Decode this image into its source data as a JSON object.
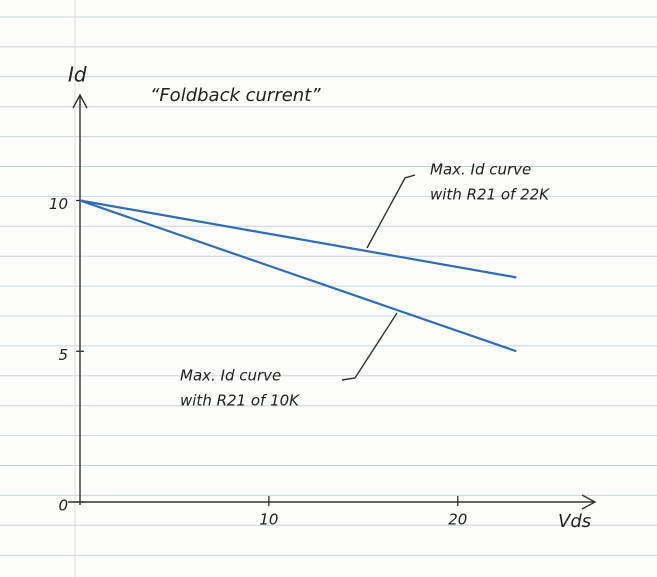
{
  "chart_data": {
    "type": "line",
    "title": "“Foldback current”",
    "x_label": "Vds",
    "y_label": "Id",
    "xlim": [
      0,
      27
    ],
    "ylim": [
      0,
      13.5
    ],
    "xticks": [
      10,
      20
    ],
    "yticks": [
      0,
      5,
      10
    ],
    "series": [
      {
        "label_lines": [
          "Max. Id curve",
          "with R21 of 22K"
        ],
        "color": "#2f6db5",
        "x": [
          0,
          23.1
        ],
        "values": [
          10,
          7.45
        ]
      },
      {
        "label_lines": [
          "Max. Id curve",
          "with R21 of 10K"
        ],
        "color": "#2f6db5",
        "x": [
          0,
          23.1
        ],
        "values": [
          10,
          5
        ]
      }
    ]
  }
}
